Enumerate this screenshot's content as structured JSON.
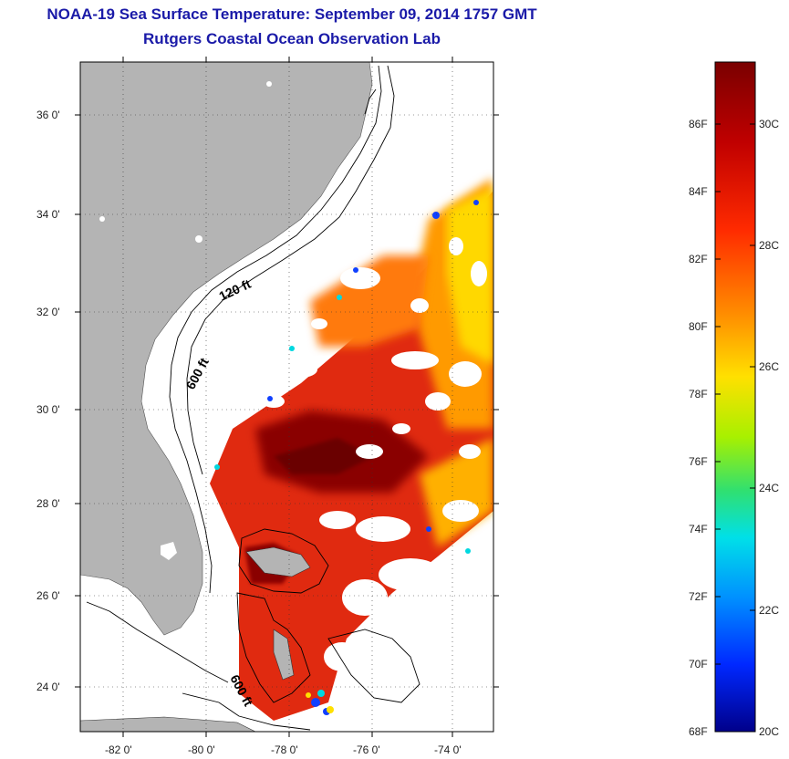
{
  "header": {
    "title": "NOAA-19 Sea Surface Temperature:  September 09, 2014 1757 GMT",
    "subtitle": "Rutgers Coastal Ocean Observation Lab"
  },
  "map": {
    "lat_labels": [
      "36 0'",
      "34 0'",
      "32 0'",
      "30 0'",
      "28 0'",
      "26 0'",
      "24 0'"
    ],
    "lon_labels": [
      "-82 0'",
      "-80 0'",
      "-78 0'",
      "-76 0'",
      "-74 0'"
    ],
    "isobath_labels": [
      "120 ft",
      "600 ft",
      "600 ft"
    ],
    "colors": {
      "land": "#b4b4b4",
      "ocean_no_data": "#ffffff",
      "contour": "#000000"
    }
  },
  "colorbar": {
    "f_labels": [
      "86F",
      "84F",
      "82F",
      "80F",
      "78F",
      "76F",
      "74F",
      "72F",
      "70F",
      "68F"
    ],
    "c_labels": [
      "30C",
      "28C",
      "26C",
      "24C",
      "22C",
      "20C"
    ],
    "colors": [
      "#7a0000",
      "#d40000",
      "#ff4a00",
      "#ff9a00",
      "#ffe200",
      "#b6f000",
      "#38e060",
      "#00e0e0",
      "#0090ff",
      "#0030ff",
      "#000090"
    ]
  }
}
